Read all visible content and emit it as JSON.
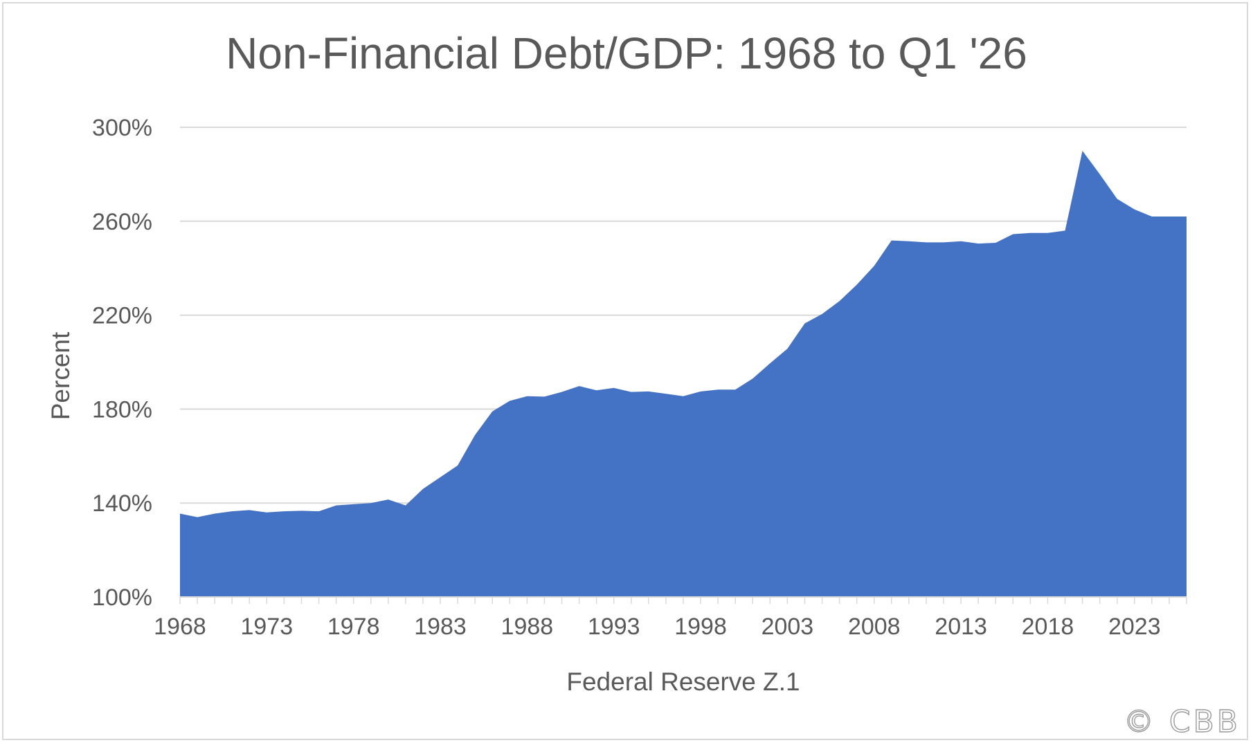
{
  "chart_data": {
    "type": "area",
    "title": "Non-Financial Debt/GDP: 1968 to Q1 '26",
    "xlabel": "Federal Reserve Z.1",
    "ylabel": "Percent",
    "ylim": [
      100,
      300
    ],
    "xlim": [
      1968,
      2026
    ],
    "y_ticks": [
      "100%",
      "140%",
      "180%",
      "220%",
      "260%",
      "300%"
    ],
    "y_tick_values": [
      100,
      140,
      180,
      220,
      260,
      300
    ],
    "x_ticks": [
      "1968",
      "1973",
      "1978",
      "1983",
      "1988",
      "1993",
      "1998",
      "2003",
      "2008",
      "2013",
      "2018",
      "2023"
    ],
    "x_tick_values": [
      1968,
      1973,
      1978,
      1983,
      1988,
      1993,
      1998,
      2003,
      2008,
      2013,
      2018,
      2023
    ],
    "grid": true,
    "fill_color": "#4472C4",
    "series": [
      {
        "x": [
          1968,
          1969,
          1970,
          1971,
          1972,
          1973,
          1974,
          1975,
          1976,
          1977,
          1978,
          1979,
          1980,
          1981,
          1982,
          1983,
          1984,
          1985,
          1986,
          1987,
          1988,
          1989,
          1990,
          1991,
          1992,
          1993,
          1994,
          1995,
          1996,
          1997,
          1998,
          1999,
          2000,
          2001,
          2002,
          2003,
          2004,
          2005,
          2006,
          2007,
          2008,
          2009,
          2010,
          2011,
          2012,
          2013,
          2014,
          2015,
          2016,
          2017,
          2018,
          2019,
          2020,
          2021,
          2022,
          2023,
          2024,
          2025,
          2026
        ],
        "values": [
          135.5,
          134,
          135.5,
          136.5,
          137,
          136,
          136.5,
          136.7,
          136.5,
          139,
          139.5,
          140,
          141.5,
          139,
          146,
          151,
          156,
          169,
          179,
          183.5,
          185.5,
          185.3,
          187.3,
          189.8,
          188,
          189,
          187.3,
          187.5,
          186.5,
          185.5,
          187.5,
          188.3,
          188.3,
          193,
          199.5,
          205.7,
          216.5,
          220.5,
          226,
          233,
          241,
          251.8,
          251.5,
          251,
          251,
          251.5,
          250.5,
          250.8,
          254.5,
          255,
          255,
          256,
          290,
          280,
          269.5,
          265,
          262,
          262,
          262
        ]
      }
    ]
  },
  "watermark": "© CBB"
}
